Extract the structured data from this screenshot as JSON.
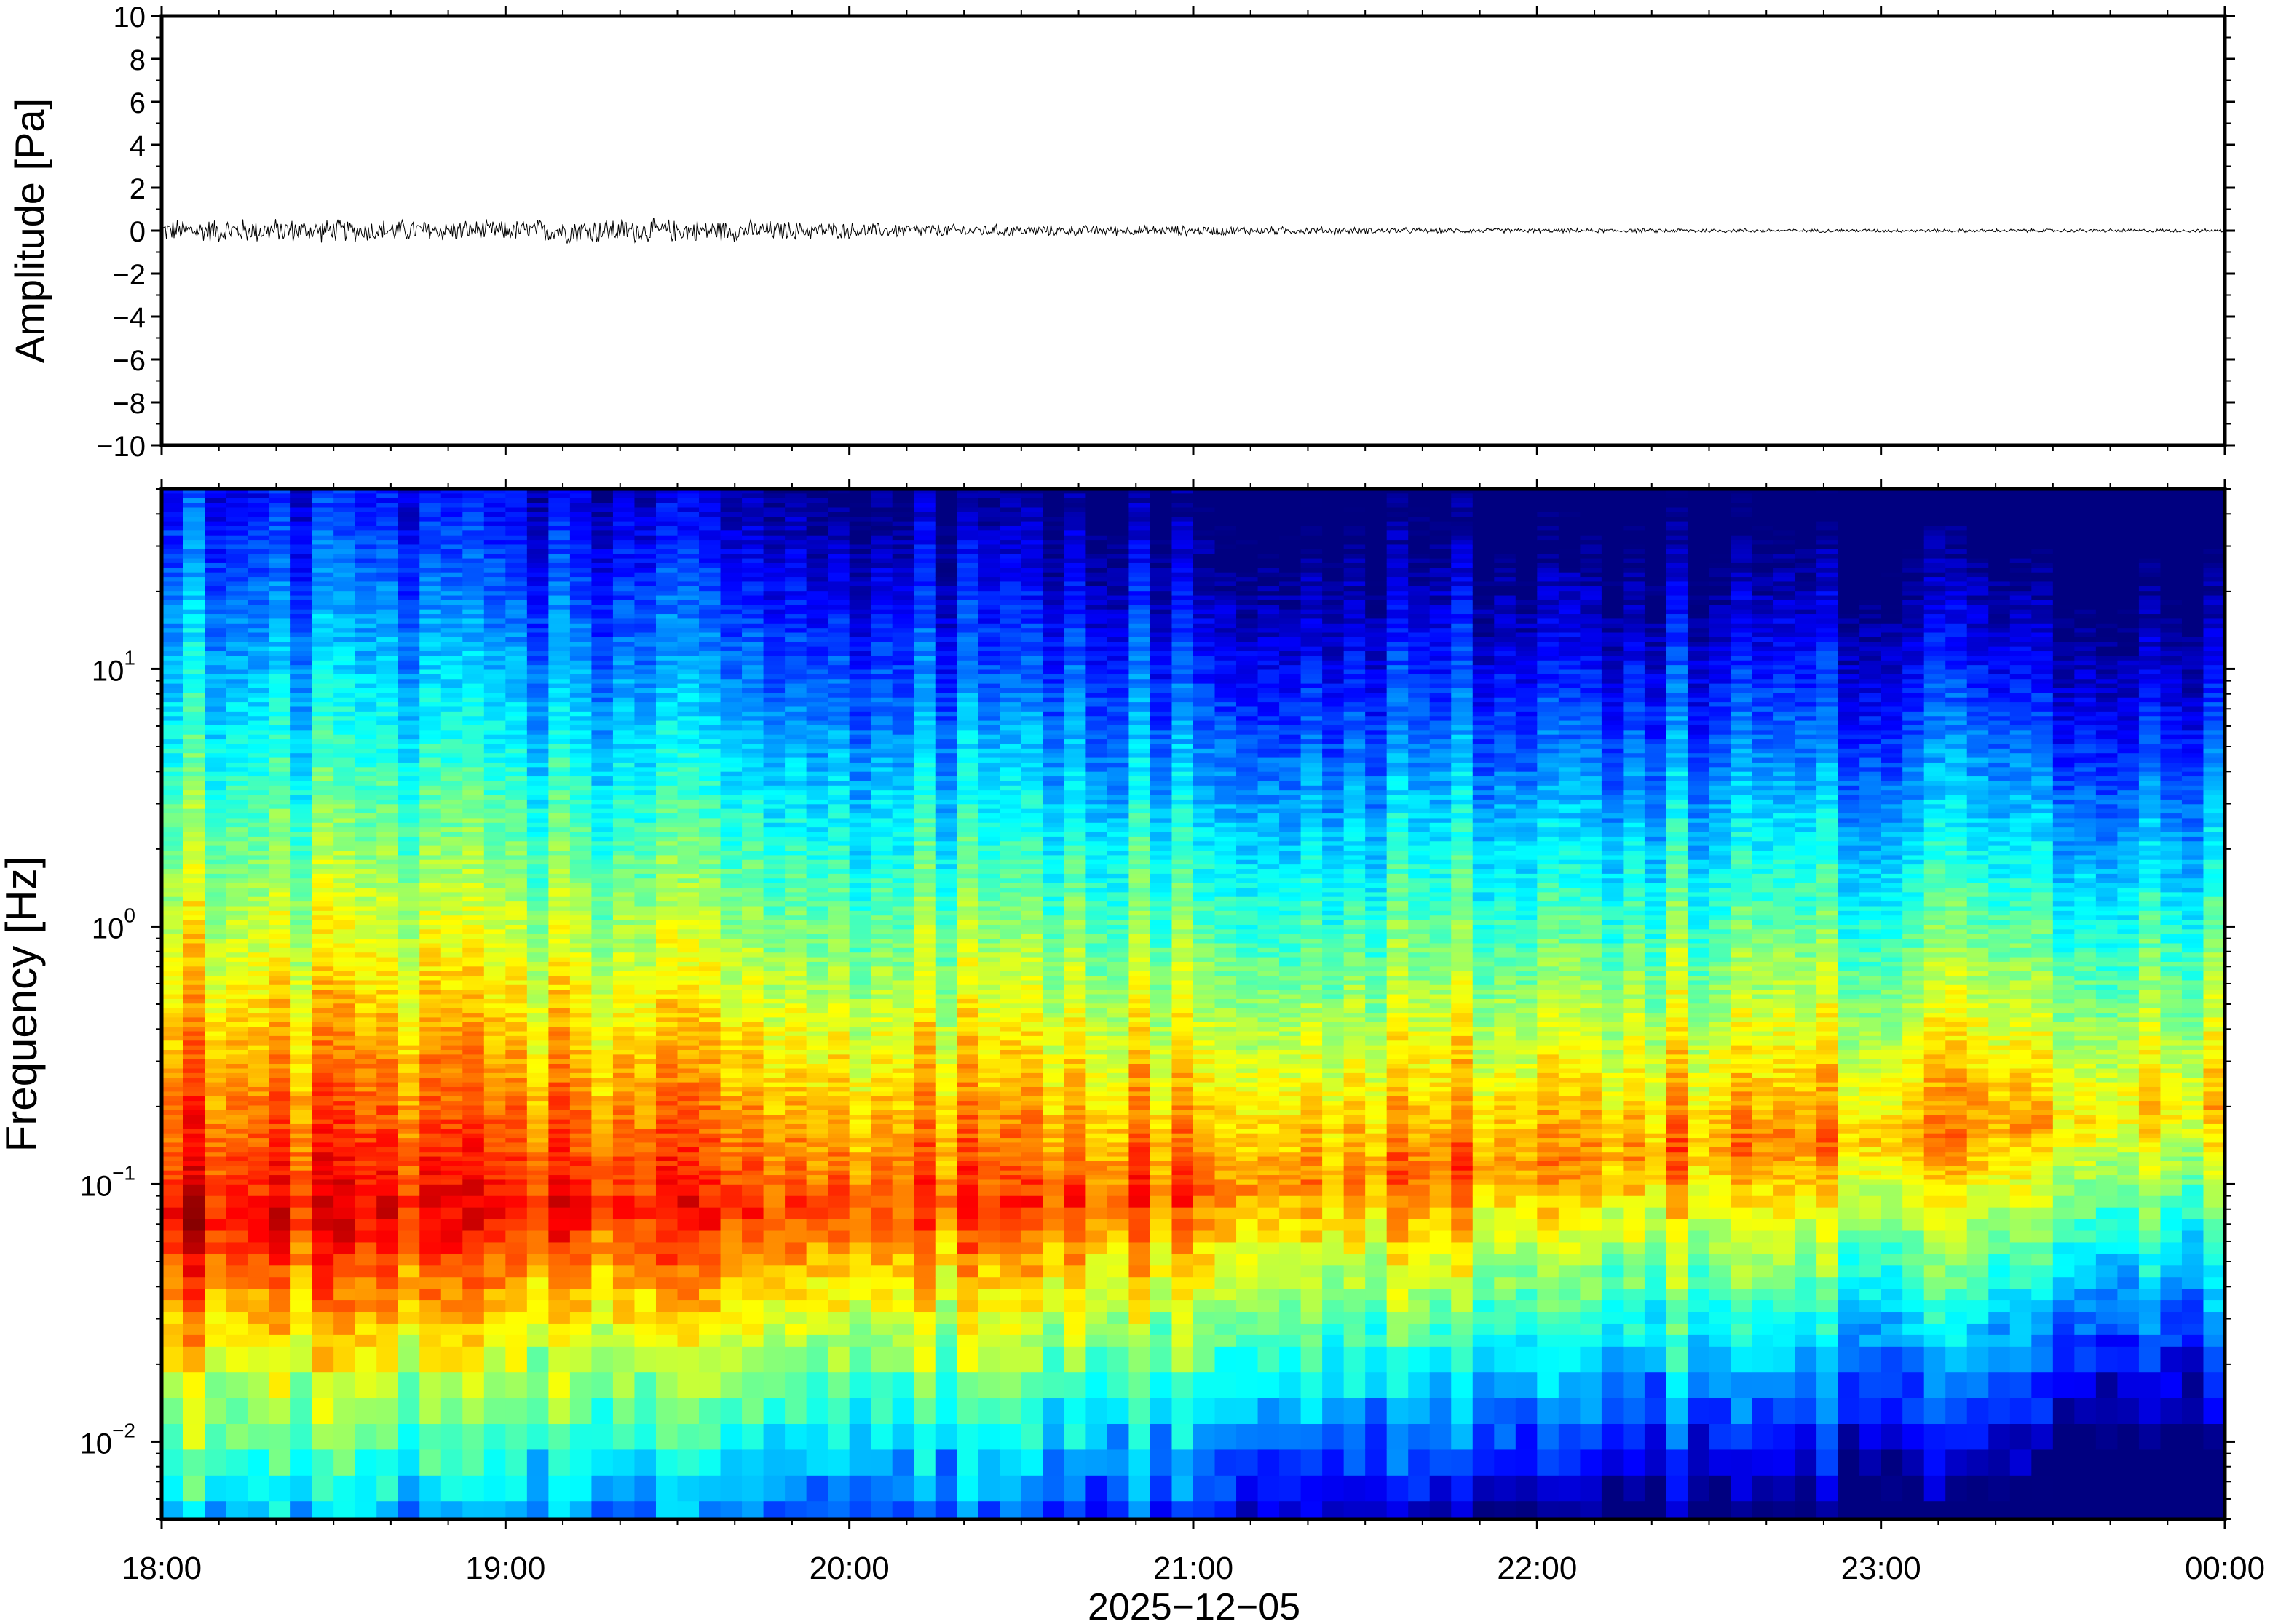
{
  "chart_data": [
    {
      "type": "line",
      "title": "",
      "ylabel": "Amplitude [Pa]",
      "xlabel": "",
      "ylim": [
        -10,
        10
      ],
      "yticks": [
        "10",
        "8",
        "6",
        "4",
        "2",
        "0",
        "−2",
        "−4",
        "−6",
        "−8",
        "−10"
      ],
      "ytick_values": [
        10,
        8,
        6,
        4,
        2,
        0,
        -2,
        -4,
        -6,
        -8,
        -10
      ],
      "x_range": [
        "2025-12-05 18:00",
        "2025-12-06 00:00"
      ],
      "series": [
        {
          "description_free": true,
          "x_hours": [
            18.0,
            18.25,
            18.5,
            18.75,
            19.0,
            19.25,
            19.5,
            19.75,
            20.0,
            20.25,
            20.5,
            20.75,
            21.0,
            21.25,
            21.5,
            21.75,
            22.0,
            22.25,
            22.5,
            22.75,
            23.0,
            23.25,
            23.5,
            23.75,
            24.0
          ],
          "envelope_pa": [
            0.5,
            0.55,
            0.5,
            0.5,
            0.45,
            0.6,
            0.5,
            0.45,
            0.35,
            0.3,
            0.25,
            0.22,
            0.22,
            0.18,
            0.15,
            0.12,
            0.1,
            0.1,
            0.1,
            0.08,
            0.08,
            0.08,
            0.08,
            0.08,
            0.08
          ]
        }
      ],
      "color": "#000000"
    },
    {
      "type": "heatmap",
      "title": "",
      "ylabel": "Frequency [Hz]",
      "xlabel": "2025−12−05",
      "y_scale": "log",
      "ylim": [
        0.005,
        50
      ],
      "ytick_labels": [
        {
          "base": "10",
          "exp": "1",
          "value": 10
        },
        {
          "base": "10",
          "exp": "0",
          "value": 1
        },
        {
          "base": "10",
          "exp": "−1",
          "value": 0.1
        },
        {
          "base": "10",
          "exp": "−2",
          "value": 0.01
        }
      ],
      "xticks": [
        "18:00",
        "19:00",
        "20:00",
        "21:00",
        "22:00",
        "23:00",
        "00:00"
      ],
      "x_range_hours": [
        18,
        24
      ],
      "colormap": "jet",
      "peak_frequency_hz_by_hour": {
        "18": 0.07,
        "19": 0.08,
        "20": 0.08,
        "21": 0.09,
        "22": 0.12,
        "23": 0.15,
        "24": 0.2
      }
    }
  ]
}
